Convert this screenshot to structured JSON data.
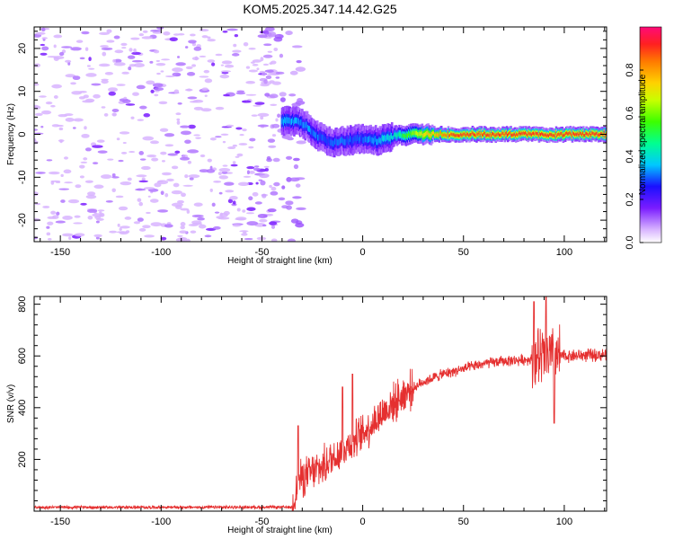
{
  "title": "KOM5.2025.347.14.42.G25",
  "chart_data": [
    {
      "type": "heatmap",
      "xlabel": "Height of straight line (km)",
      "ylabel": "Frequency (Hz)",
      "xlim": [
        -163,
        121
      ],
      "ylim": [
        -25,
        25
      ],
      "x_ticks": [
        -150,
        -100,
        -50,
        0,
        50,
        100
      ],
      "y_ticks": [
        -20,
        -10,
        0,
        10,
        20
      ],
      "colorbar": {
        "label": "Normalized spectral amplitude",
        "range": [
          0,
          1
        ],
        "ticks": [
          0.0,
          0.2,
          0.4,
          0.6,
          0.8
        ]
      },
      "noise_region_x": [
        -163,
        -42
      ],
      "signal_track": [
        {
          "x": -38,
          "y": 3
        },
        {
          "x": -33,
          "y": 3
        },
        {
          "x": -28,
          "y": 2
        },
        {
          "x": -22,
          "y": -0.5
        },
        {
          "x": -15,
          "y": -2
        },
        {
          "x": -8,
          "y": -1.5
        },
        {
          "x": 0,
          "y": -1
        },
        {
          "x": 8,
          "y": -1.5
        },
        {
          "x": 15,
          "y": -0.5
        },
        {
          "x": 25,
          "y": 0
        },
        {
          "x": 40,
          "y": 0
        },
        {
          "x": 60,
          "y": 0
        },
        {
          "x": 80,
          "y": 0
        },
        {
          "x": 95,
          "y": 0
        },
        {
          "x": 121,
          "y": 0
        }
      ],
      "signal_amplitude": [
        {
          "x": -38,
          "a": 0.35
        },
        {
          "x": -20,
          "a": 0.3
        },
        {
          "x": 0,
          "a": 0.3
        },
        {
          "x": 15,
          "a": 0.4
        },
        {
          "x": 30,
          "a": 0.7
        },
        {
          "x": 45,
          "a": 0.88
        },
        {
          "x": 121,
          "a": 0.9
        }
      ]
    },
    {
      "type": "line",
      "xlabel": "Height of straight line (km)",
      "ylabel": "SNR (v/v)",
      "xlim": [
        -163,
        121
      ],
      "ylim": [
        0,
        830
      ],
      "x_ticks": [
        -150,
        -100,
        -50,
        0,
        50,
        100
      ],
      "y_ticks": [
        200,
        400,
        600,
        800
      ],
      "color": "#e53030",
      "series_trend": [
        {
          "x": -163,
          "y": 15
        },
        {
          "x": -35,
          "y": 15
        },
        {
          "x": -32,
          "y": 120
        },
        {
          "x": -20,
          "y": 170
        },
        {
          "x": -10,
          "y": 240
        },
        {
          "x": 0,
          "y": 300
        },
        {
          "x": 10,
          "y": 380
        },
        {
          "x": 20,
          "y": 450
        },
        {
          "x": 30,
          "y": 500
        },
        {
          "x": 40,
          "y": 530
        },
        {
          "x": 50,
          "y": 550
        },
        {
          "x": 60,
          "y": 570
        },
        {
          "x": 70,
          "y": 580
        },
        {
          "x": 80,
          "y": 585
        },
        {
          "x": 100,
          "y": 600
        },
        {
          "x": 121,
          "y": 605
        }
      ],
      "spikes": [
        {
          "x": -32,
          "y": 330
        },
        {
          "x": -10,
          "y": 480
        },
        {
          "x": -5,
          "y": 530
        },
        {
          "x": 85,
          "y": 810
        },
        {
          "x": 91,
          "y": 830
        },
        {
          "x": 95,
          "y": 340
        }
      ]
    }
  ]
}
